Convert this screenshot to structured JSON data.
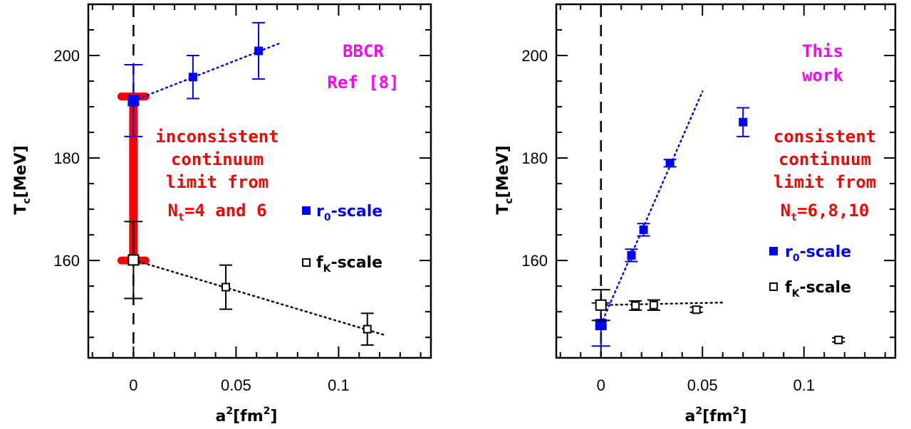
{
  "colors": {
    "r0": "#0000ff",
    "fk": "#000000",
    "band": "#ff0000",
    "title": "#ff00ff",
    "note": "#ff0000"
  },
  "chart_data": [
    {
      "type": "scatter",
      "xlabel": {
        "base": "a",
        "sup": "2",
        "bracket": "[fm",
        "bracket_sup": "2",
        "close": "]"
      },
      "ylabel": {
        "base": "T",
        "sub": "c",
        "rest": "[MeV]"
      },
      "xlim": [
        -0.022,
        0.145
      ],
      "ylim": [
        141,
        210
      ],
      "x_ticks": [
        0,
        0.05,
        0.1
      ],
      "x_tick_labels": [
        "0",
        "0.05",
        "0.1"
      ],
      "y_ticks": [
        160,
        180,
        200
      ],
      "y_tick_labels": [
        "160",
        "180",
        "200"
      ],
      "title_lines": [
        "BBCR",
        "Ref [8]"
      ],
      "annotation_lines": [
        "inconsistent",
        "continuum",
        "limit from"
      ],
      "annotation_last": {
        "pre": "N",
        "sub": "t",
        "post": "=4 and 6"
      },
      "legend": [
        {
          "series": "r0",
          "label_pre": "r",
          "label_sub": "0",
          "label_post": "-scale",
          "marker": "filled-square"
        },
        {
          "series": "fk",
          "label_pre": "f",
          "label_sub": "K",
          "label_post": "-scale",
          "marker": "open-square"
        }
      ],
      "band": {
        "x": 0,
        "y_low": 160,
        "y_high": 192
      },
      "series": [
        {
          "key": "r0",
          "marker": "filled-square",
          "points": [
            {
              "x": 0.029,
              "y": 195.8,
              "err": 4.2
            },
            {
              "x": 0.061,
              "y": 200.9,
              "err": 5.5
            }
          ],
          "extrapolation": {
            "x": 0,
            "y": 191.2,
            "err": 7.0
          },
          "fit": {
            "x0": 0,
            "y0": 191.2,
            "x1": 0.072,
            "y1": 202.5
          }
        },
        {
          "key": "fk",
          "marker": "open-square",
          "points": [
            {
              "x": 0.045,
              "y": 154.8,
              "err": 4.3
            },
            {
              "x": 0.114,
              "y": 146.6,
              "err": 3.1
            }
          ],
          "extrapolation": {
            "x": 0,
            "y": 160.1,
            "err": 7.5
          },
          "fit": {
            "x0": 0,
            "y0": 160.1,
            "x1": 0.122,
            "y1": 145.5
          }
        }
      ]
    },
    {
      "type": "scatter",
      "xlabel": {
        "base": "a",
        "sup": "2",
        "bracket": "[fm",
        "bracket_sup": "2",
        "close": "]"
      },
      "ylabel": {
        "base": "T",
        "sub": "c",
        "rest": "[MeV]"
      },
      "xlim": [
        -0.022,
        0.145
      ],
      "ylim": [
        141,
        210
      ],
      "x_ticks": [
        0,
        0.05,
        0.1
      ],
      "x_tick_labels": [
        "0",
        "0.05",
        "0.1"
      ],
      "y_ticks": [
        160,
        180,
        200
      ],
      "y_tick_labels": [
        "160",
        "180",
        "200"
      ],
      "title_lines": [
        "This",
        "work"
      ],
      "annotation_lines": [
        "consistent",
        "continuum",
        "limit from"
      ],
      "annotation_last": {
        "pre": "N",
        "sub": "t",
        "post": "=6,8,10"
      },
      "legend": [
        {
          "series": "r0",
          "label_pre": "r",
          "label_sub": "0",
          "label_post": "-scale",
          "marker": "filled-square"
        },
        {
          "series": "fk",
          "label_pre": "f",
          "label_sub": "K",
          "label_post": "-scale",
          "marker": "open-square"
        }
      ],
      "band": null,
      "series": [
        {
          "key": "r0",
          "marker": "filled-square",
          "points": [
            {
              "x": 0.015,
              "y": 161.0,
              "err": 1.2
            },
            {
              "x": 0.021,
              "y": 166.0,
              "err": 1.2
            },
            {
              "x": 0.034,
              "y": 179.0,
              "err": 0.7
            },
            {
              "x": 0.07,
              "y": 187.0,
              "err": 2.8
            }
          ],
          "extrapolation": {
            "x": 0,
            "y": 147.5,
            "err": 4.2
          },
          "fit": {
            "x0": 0,
            "y0": 147.5,
            "x1": 0.05,
            "y1": 193.0
          }
        },
        {
          "key": "fk",
          "marker": "open-square",
          "points": [
            {
              "x": 0.017,
              "y": 151.2,
              "err": 0.9
            },
            {
              "x": 0.026,
              "y": 151.3,
              "err": 1.0
            },
            {
              "x": 0.047,
              "y": 150.4,
              "err": 0.5
            },
            {
              "x": 0.117,
              "y": 144.5,
              "err": 0.4
            }
          ],
          "extrapolation": {
            "x": 0,
            "y": 151.3,
            "err": 3.0
          },
          "fit": {
            "x0": 0,
            "y0": 151.3,
            "x1": 0.061,
            "y1": 151.8
          }
        }
      ]
    }
  ]
}
